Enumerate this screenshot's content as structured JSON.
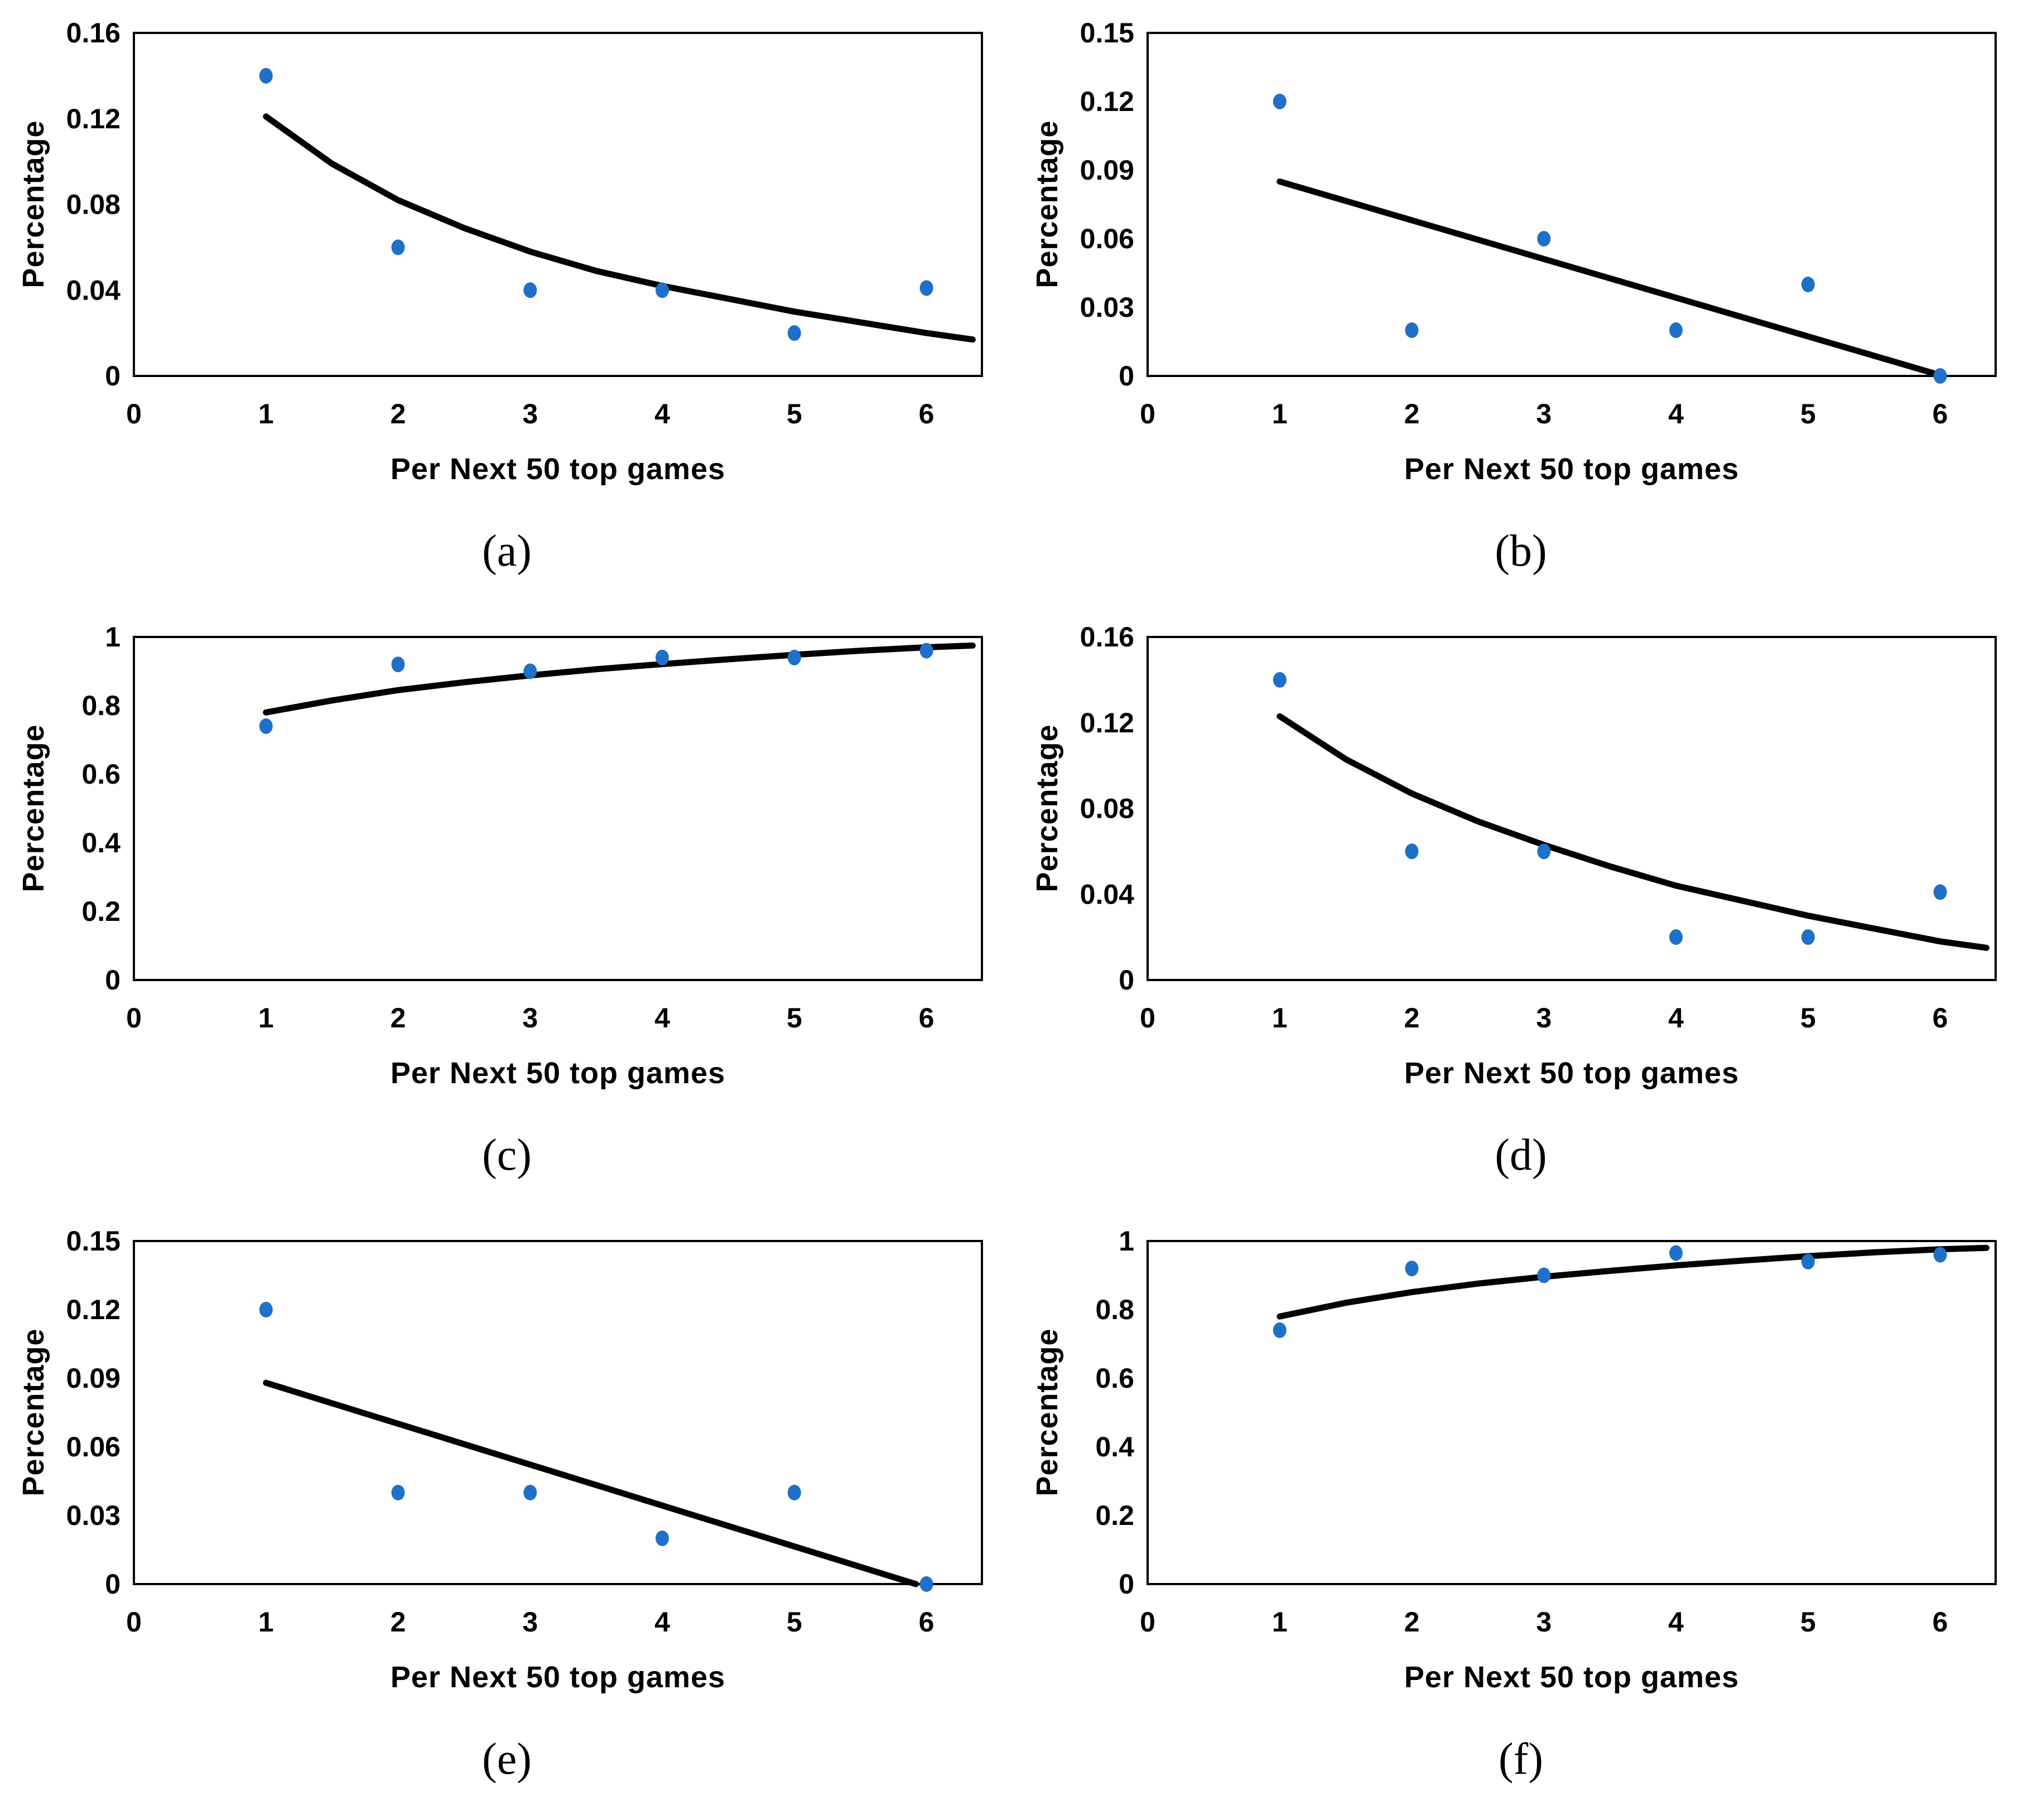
{
  "colors": {
    "marker": "#1E70C8",
    "trendline": "#000000",
    "axis": "#000000",
    "text": "#000000"
  },
  "chart_data": [
    {
      "id": "a",
      "label": "(a)",
      "type": "scatter",
      "xlabel": "Per Next 50 top games",
      "ylabel": "Percentage",
      "xlim": [
        0,
        6.42
      ],
      "ylim": [
        0,
        0.16
      ],
      "xticks": [
        0,
        1,
        2,
        3,
        4,
        5,
        6
      ],
      "ytick_values": [
        0,
        0.04,
        0.08,
        0.12,
        0.16
      ],
      "yticks": [
        "0",
        "0.04",
        "0.08",
        "0.12",
        "0.16"
      ],
      "x": [
        1,
        2,
        3,
        4,
        5,
        6
      ],
      "y": [
        0.14,
        0.06,
        0.04,
        0.04,
        0.02,
        0.041
      ],
      "trendline": {
        "shape": "power-decay",
        "points": [
          [
            1,
            0.121
          ],
          [
            1.5,
            0.099
          ],
          [
            2,
            0.082
          ],
          [
            2.5,
            0.069
          ],
          [
            3,
            0.058
          ],
          [
            3.5,
            0.049
          ],
          [
            4,
            0.042
          ],
          [
            4.5,
            0.036
          ],
          [
            5,
            0.03
          ],
          [
            5.5,
            0.025
          ],
          [
            6,
            0.02
          ],
          [
            6.35,
            0.017
          ]
        ]
      },
      "grid": false,
      "legend": null
    },
    {
      "id": "b",
      "label": "(b)",
      "type": "scatter",
      "xlabel": "Per Next 50 top games",
      "ylabel": "Percentage",
      "xlim": [
        0,
        6.42
      ],
      "ylim": [
        0,
        0.15
      ],
      "xticks": [
        0,
        1,
        2,
        3,
        4,
        5,
        6
      ],
      "ytick_values": [
        0,
        0.03,
        0.06,
        0.09,
        0.12,
        0.15
      ],
      "yticks": [
        "0",
        "0.03",
        "0.06",
        "0.09",
        "0.12",
        "0.15"
      ],
      "x": [
        1,
        2,
        3,
        4,
        5,
        6
      ],
      "y": [
        0.12,
        0.02,
        0.06,
        0.02,
        0.04,
        0.0
      ],
      "trendline": {
        "shape": "linear",
        "points": [
          [
            1,
            0.085
          ],
          [
            6.02,
            0.0
          ]
        ]
      },
      "grid": false,
      "legend": null
    },
    {
      "id": "c",
      "label": "(c)",
      "type": "scatter",
      "xlabel": "Per Next 50 top games",
      "ylabel": "Percentage",
      "xlim": [
        0,
        6.42
      ],
      "ylim": [
        0,
        1
      ],
      "xticks": [
        0,
        1,
        2,
        3,
        4,
        5,
        6
      ],
      "ytick_values": [
        0,
        0.2,
        0.4,
        0.6,
        0.8,
        1
      ],
      "yticks": [
        "0",
        "0.2",
        "0.4",
        "0.6",
        "0.8",
        "1"
      ],
      "x": [
        1,
        2,
        3,
        4,
        5,
        6
      ],
      "y": [
        0.74,
        0.92,
        0.9,
        0.94,
        0.94,
        0.96
      ],
      "trendline": {
        "shape": "logarithmic",
        "points": [
          [
            1,
            0.78
          ],
          [
            1.5,
            0.815
          ],
          [
            2,
            0.845
          ],
          [
            2.5,
            0.868
          ],
          [
            3,
            0.888
          ],
          [
            3.5,
            0.906
          ],
          [
            4,
            0.921
          ],
          [
            4.5,
            0.935
          ],
          [
            5,
            0.948
          ],
          [
            5.5,
            0.96
          ],
          [
            6,
            0.97
          ],
          [
            6.35,
            0.975
          ]
        ]
      },
      "grid": false,
      "legend": null
    },
    {
      "id": "d",
      "label": "(d)",
      "type": "scatter",
      "xlabel": "Per Next 50 top games",
      "ylabel": "Percentage",
      "xlim": [
        0,
        6.42
      ],
      "ylim": [
        0,
        0.16
      ],
      "xticks": [
        0,
        1,
        2,
        3,
        4,
        5,
        6
      ],
      "ytick_values": [
        0,
        0.04,
        0.08,
        0.12,
        0.16
      ],
      "yticks": [
        "0",
        "0.04",
        "0.08",
        "0.12",
        "0.16"
      ],
      "x": [
        1,
        2,
        3,
        4,
        5,
        6
      ],
      "y": [
        0.14,
        0.06,
        0.06,
        0.02,
        0.02,
        0.041
      ],
      "trendline": {
        "shape": "power-decay",
        "points": [
          [
            1,
            0.123
          ],
          [
            1.5,
            0.103
          ],
          [
            2,
            0.087
          ],
          [
            2.5,
            0.074
          ],
          [
            3,
            0.063
          ],
          [
            3.5,
            0.053
          ],
          [
            4,
            0.044
          ],
          [
            4.5,
            0.037
          ],
          [
            5,
            0.03
          ],
          [
            5.5,
            0.024
          ],
          [
            6,
            0.018
          ],
          [
            6.35,
            0.015
          ]
        ]
      },
      "grid": false,
      "legend": null
    },
    {
      "id": "e",
      "label": "(e)",
      "type": "scatter",
      "xlabel": "Per Next 50 top games",
      "ylabel": "Percentage",
      "xlim": [
        0,
        6.42
      ],
      "ylim": [
        0,
        0.15
      ],
      "xticks": [
        0,
        1,
        2,
        3,
        4,
        5,
        6
      ],
      "ytick_values": [
        0,
        0.03,
        0.06,
        0.09,
        0.12,
        0.15
      ],
      "yticks": [
        "0",
        "0.03",
        "0.06",
        "0.09",
        "0.12",
        "0.15"
      ],
      "x": [
        1,
        2,
        3,
        4,
        5,
        6
      ],
      "y": [
        0.12,
        0.04,
        0.04,
        0.02,
        0.04,
        0.0
      ],
      "trendline": {
        "shape": "linear",
        "points": [
          [
            1,
            0.088
          ],
          [
            5.92,
            0.0
          ]
        ]
      },
      "grid": false,
      "legend": null
    },
    {
      "id": "f",
      "label": "(f)",
      "type": "scatter",
      "xlabel": "Per Next 50 top games",
      "ylabel": "Percentage",
      "xlim": [
        0,
        6.42
      ],
      "ylim": [
        0,
        1
      ],
      "xticks": [
        0,
        1,
        2,
        3,
        4,
        5,
        6
      ],
      "ytick_values": [
        0,
        0.2,
        0.4,
        0.6,
        0.8,
        1
      ],
      "yticks": [
        "0",
        "0.2",
        "0.4",
        "0.6",
        "0.8",
        "1"
      ],
      "x": [
        1,
        2,
        3,
        4,
        5,
        6
      ],
      "y": [
        0.74,
        0.92,
        0.9,
        0.965,
        0.94,
        0.96
      ],
      "trendline": {
        "shape": "logarithmic",
        "points": [
          [
            1,
            0.78
          ],
          [
            1.5,
            0.82
          ],
          [
            2,
            0.851
          ],
          [
            2.5,
            0.876
          ],
          [
            3,
            0.896
          ],
          [
            3.5,
            0.913
          ],
          [
            4,
            0.929
          ],
          [
            4.5,
            0.943
          ],
          [
            5,
            0.956
          ],
          [
            5.5,
            0.967
          ],
          [
            6,
            0.976
          ],
          [
            6.35,
            0.98
          ]
        ]
      },
      "grid": false,
      "legend": null
    }
  ]
}
